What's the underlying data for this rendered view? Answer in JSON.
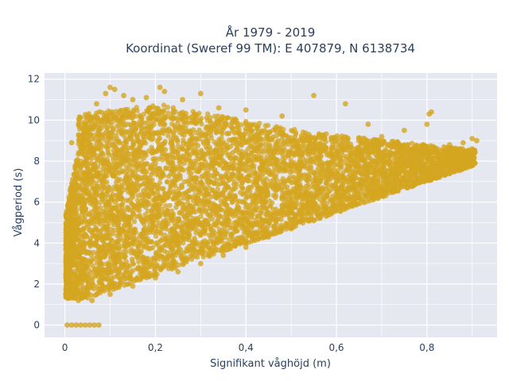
{
  "chart_data": {
    "type": "scatter",
    "title": "År 1979 - 2019",
    "subtitle": "Koordinat (Sweref 99 TM): E 407879, N 6138734",
    "xlabel": "Signifikant våghöjd (m)",
    "ylabel": "Vågperiod (s)",
    "xlim": [
      -0.045,
      0.955
    ],
    "ylim": [
      -0.6,
      12.3
    ],
    "x_ticks": [
      0,
      0.2,
      0.4,
      0.6,
      0.8
    ],
    "x_tick_labels": [
      "0",
      "0,2",
      "0,4",
      "0,6",
      "0,8"
    ],
    "y_ticks": [
      0,
      2,
      4,
      6,
      8,
      10,
      12
    ],
    "y_tick_labels": [
      "0",
      "2",
      "4",
      "6",
      "8",
      "10",
      "12"
    ],
    "grid": true,
    "marker_color": "#d4a520",
    "plot_background": "#e5e8f1",
    "series": [
      {
        "points": [
          [
            0.005,
            0.0
          ],
          [
            0.015,
            0.0
          ],
          [
            0.025,
            0.0
          ],
          [
            0.035,
            0.0
          ],
          [
            0.045,
            0.0
          ],
          [
            0.055,
            0.0
          ],
          [
            0.065,
            0.0
          ],
          [
            0.075,
            0.0
          ],
          [
            0.002,
            2.5
          ],
          [
            0.002,
            1.5
          ],
          [
            0.01,
            5.5
          ],
          [
            0.015,
            8.9
          ],
          [
            0.03,
            9.8
          ],
          [
            0.04,
            9.2
          ],
          [
            0.05,
            10.0
          ],
          [
            0.07,
            10.8
          ],
          [
            0.09,
            11.3
          ],
          [
            0.1,
            11.6
          ],
          [
            0.11,
            11.5
          ],
          [
            0.13,
            11.2
          ],
          [
            0.15,
            11.0
          ],
          [
            0.18,
            11.1
          ],
          [
            0.21,
            11.6
          ],
          [
            0.22,
            11.4
          ],
          [
            0.26,
            11.0
          ],
          [
            0.3,
            11.3
          ],
          [
            0.34,
            10.6
          ],
          [
            0.4,
            10.5
          ],
          [
            0.48,
            10.2
          ],
          [
            0.55,
            11.2
          ],
          [
            0.62,
            10.8
          ],
          [
            0.67,
            9.8
          ],
          [
            0.7,
            9.2
          ],
          [
            0.75,
            9.5
          ],
          [
            0.8,
            9.8
          ],
          [
            0.805,
            10.3
          ],
          [
            0.81,
            10.4
          ],
          [
            0.85,
            8.8
          ],
          [
            0.88,
            8.9
          ],
          [
            0.9,
            9.1
          ],
          [
            0.91,
            9.0
          ],
          [
            0.9,
            8.6
          ],
          [
            0.88,
            8.3
          ],
          [
            0.85,
            8.0
          ],
          [
            0.8,
            7.6
          ],
          [
            0.75,
            7.1
          ],
          [
            0.7,
            6.6
          ],
          [
            0.65,
            6.2
          ],
          [
            0.6,
            5.6
          ],
          [
            0.55,
            5.1
          ],
          [
            0.5,
            4.7
          ],
          [
            0.45,
            4.3
          ],
          [
            0.4,
            3.8
          ],
          [
            0.35,
            3.4
          ],
          [
            0.3,
            3.0
          ],
          [
            0.25,
            2.6
          ],
          [
            0.2,
            2.3
          ],
          [
            0.15,
            1.9
          ],
          [
            0.1,
            1.5
          ],
          [
            0.06,
            1.2
          ],
          [
            0.03,
            1.2
          ],
          [
            0.02,
            1.4
          ],
          [
            0.6,
            8.5
          ],
          [
            0.7,
            8.8
          ],
          [
            0.5,
            9.0
          ],
          [
            0.45,
            8.5
          ],
          [
            0.8,
            8.2
          ],
          [
            0.85,
            8.4
          ]
        ]
      }
    ]
  }
}
